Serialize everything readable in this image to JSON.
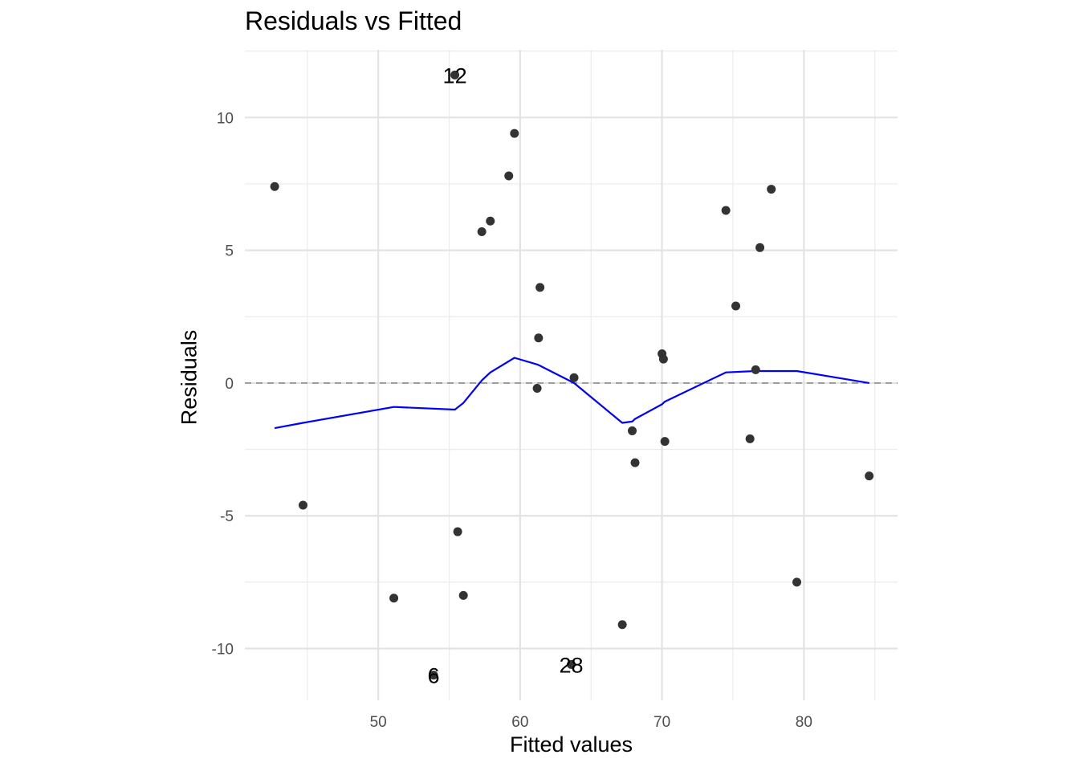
{
  "chart_data": {
    "type": "scatter",
    "title": "Residuals vs Fitted",
    "xlabel": "Fitted values",
    "ylabel": "Residuals",
    "xlim": [
      40.6,
      86.6
    ],
    "ylim": [
      -11.95,
      12.55
    ],
    "x_ticks": [
      50,
      60,
      70,
      80
    ],
    "x_tick_labels": [
      "50",
      "60",
      "70",
      "80"
    ],
    "y_ticks": [
      -10,
      -5,
      0,
      5,
      10
    ],
    "y_tick_labels": [
      "-10",
      "-5",
      "0",
      "5",
      "10"
    ],
    "grid": true,
    "reference_line": {
      "y": 0,
      "style": "dashed",
      "color": "#7f7f7f"
    },
    "point_color": "#333333",
    "smooth_color": "#0000ff",
    "points": [
      {
        "x": 42.7,
        "y": 7.4
      },
      {
        "x": 44.7,
        "y": -4.6
      },
      {
        "x": 51.1,
        "y": -8.1
      },
      {
        "x": 53.9,
        "y": -11.0
      },
      {
        "x": 55.4,
        "y": 11.6
      },
      {
        "x": 55.6,
        "y": -5.6
      },
      {
        "x": 56.0,
        "y": -8.0
      },
      {
        "x": 57.3,
        "y": 5.7
      },
      {
        "x": 57.9,
        "y": 6.1
      },
      {
        "x": 59.2,
        "y": 7.8
      },
      {
        "x": 59.6,
        "y": 9.4
      },
      {
        "x": 61.2,
        "y": -0.2
      },
      {
        "x": 61.3,
        "y": 1.7
      },
      {
        "x": 61.4,
        "y": 3.6
      },
      {
        "x": 63.6,
        "y": -10.6
      },
      {
        "x": 63.8,
        "y": 0.2
      },
      {
        "x": 67.2,
        "y": -9.1
      },
      {
        "x": 67.9,
        "y": -1.8
      },
      {
        "x": 68.1,
        "y": -3.0
      },
      {
        "x": 70.0,
        "y": 1.1
      },
      {
        "x": 70.1,
        "y": 0.9
      },
      {
        "x": 70.2,
        "y": -2.2
      },
      {
        "x": 74.5,
        "y": 6.5
      },
      {
        "x": 75.2,
        "y": 2.9
      },
      {
        "x": 76.2,
        "y": -2.1
      },
      {
        "x": 76.6,
        "y": 0.5
      },
      {
        "x": 76.9,
        "y": 5.1
      },
      {
        "x": 77.7,
        "y": 7.3
      },
      {
        "x": 79.5,
        "y": -7.5
      },
      {
        "x": 84.6,
        "y": -3.5
      }
    ],
    "point_labels": [
      {
        "text": "12",
        "x": 55.4,
        "y": 11.6
      },
      {
        "text": "6",
        "x": 53.9,
        "y": -11.0
      },
      {
        "text": "28",
        "x": 63.6,
        "y": -10.6
      }
    ],
    "smooth_line": [
      {
        "x": 42.7,
        "y": -1.7
      },
      {
        "x": 44.7,
        "y": -1.5
      },
      {
        "x": 51.1,
        "y": -0.9
      },
      {
        "x": 55.4,
        "y": -1.0
      },
      {
        "x": 56.0,
        "y": -0.75
      },
      {
        "x": 57.3,
        "y": 0.1
      },
      {
        "x": 57.9,
        "y": 0.4
      },
      {
        "x": 59.6,
        "y": 0.95
      },
      {
        "x": 61.2,
        "y": 0.7
      },
      {
        "x": 61.4,
        "y": 0.65
      },
      {
        "x": 63.8,
        "y": 0.0
      },
      {
        "x": 67.2,
        "y": -1.5
      },
      {
        "x": 67.9,
        "y": -1.45
      },
      {
        "x": 68.1,
        "y": -1.35
      },
      {
        "x": 70.0,
        "y": -0.8
      },
      {
        "x": 70.2,
        "y": -0.7
      },
      {
        "x": 74.5,
        "y": 0.4
      },
      {
        "x": 76.6,
        "y": 0.45
      },
      {
        "x": 77.7,
        "y": 0.45
      },
      {
        "x": 79.5,
        "y": 0.45
      },
      {
        "x": 84.6,
        "y": 0.0
      }
    ]
  }
}
